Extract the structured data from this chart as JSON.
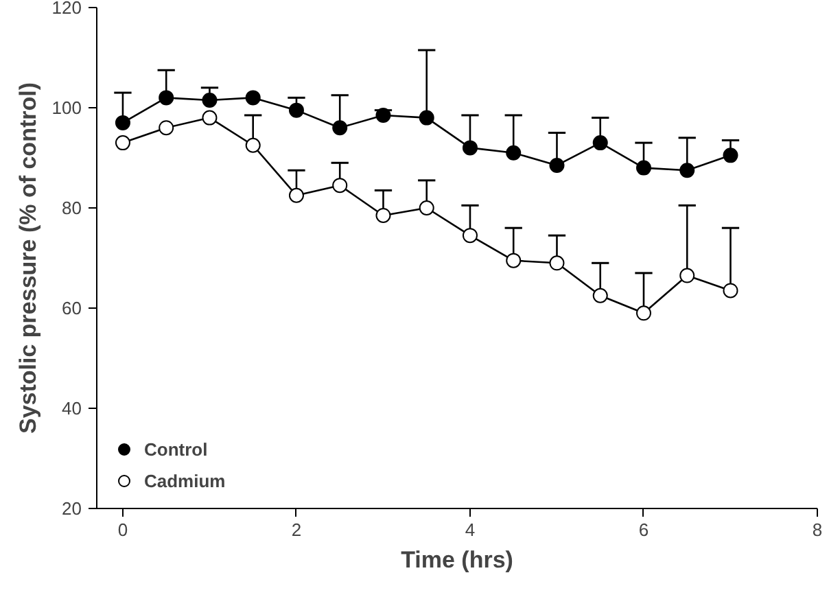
{
  "chart_data": {
    "type": "line",
    "xlabel": "Time (hrs)",
    "ylabel": "Systolic pressure (% of control)",
    "x": [
      0,
      0.5,
      1,
      1.5,
      2,
      2.5,
      3,
      3.5,
      4,
      4.5,
      5,
      5.5,
      6,
      6.5,
      7
    ],
    "series": [
      {
        "name": "Control",
        "color": "#000000",
        "values": [
          97,
          102,
          101.5,
          102,
          99.5,
          96,
          98.5,
          98,
          92,
          91,
          88.5,
          93,
          88,
          87.5,
          90.5
        ],
        "errors": [
          [
            97,
            103
          ],
          [
            102,
            107.5
          ],
          [
            101.5,
            104
          ],
          null,
          [
            99.5,
            102
          ],
          [
            96,
            102.5
          ],
          [
            98.5,
            99.5
          ],
          [
            98,
            111.5
          ],
          [
            92,
            98.5
          ],
          [
            91,
            98.5
          ],
          [
            88.5,
            95
          ],
          [
            93,
            98
          ],
          [
            88,
            93
          ],
          [
            87.5,
            94
          ],
          [
            90.5,
            93.5
          ]
        ]
      },
      {
        "name": "Cadmium",
        "color": "#ffffff",
        "values": [
          93,
          96,
          98,
          92.5,
          82.5,
          84.5,
          78.5,
          80,
          74.5,
          69.5,
          69,
          62.5,
          59,
          66.5,
          63.5
        ],
        "errors": [
          null,
          null,
          null,
          [
            92.5,
            98.5
          ],
          [
            82.5,
            87.5
          ],
          [
            84.5,
            89
          ],
          [
            78.5,
            83.5
          ],
          [
            80,
            85.5
          ],
          [
            74.5,
            80.5
          ],
          [
            69.5,
            76
          ],
          [
            69,
            74.5
          ],
          [
            62.5,
            69
          ],
          [
            59,
            67
          ],
          [
            66.5,
            80.5
          ],
          [
            63.5,
            76
          ]
        ]
      }
    ],
    "xlim": [
      -0.3,
      8
    ],
    "xticks": [
      0,
      2,
      4,
      6,
      8
    ],
    "ylim": [
      20,
      120
    ],
    "yticks": [
      20,
      40,
      60,
      80,
      100,
      120
    ],
    "grid": false,
    "legend": "bottom left",
    "marker": "circle",
    "line_style": "solid"
  }
}
